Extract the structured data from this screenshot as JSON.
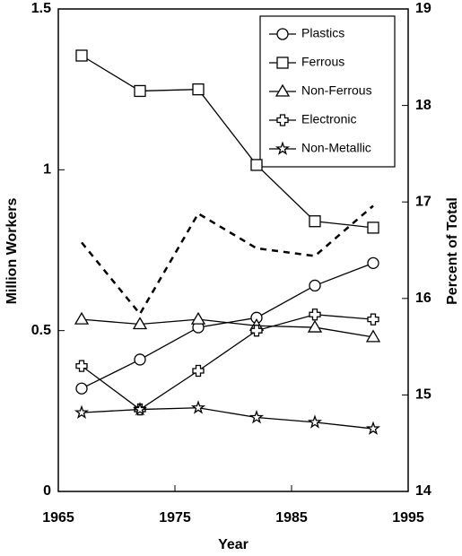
{
  "chart_data": {
    "type": "line",
    "x_label": "Year",
    "y_label": "Million Workers",
    "y2_label": "Percent of Total",
    "xlim": [
      1965,
      1995
    ],
    "xticks": [
      1965,
      1975,
      1985,
      1995
    ],
    "ylim": [
      0,
      1.5
    ],
    "yticks": [
      0,
      0.5,
      1,
      1.5
    ],
    "y2lim": [
      14,
      19
    ],
    "y2ticks": [
      14,
      15,
      16,
      17,
      18,
      19
    ],
    "legend": "upper right",
    "x": [
      1967,
      1972,
      1977,
      1982,
      1987,
      1992
    ],
    "series": [
      {
        "name": "Plastics",
        "color": "#000000",
        "marker": "circle",
        "values": [
          0.32,
          0.41,
          0.51,
          0.54,
          0.64,
          0.71
        ]
      },
      {
        "name": "Ferrous",
        "color": "#000000",
        "marker": "square",
        "values": [
          1.355,
          1.245,
          1.25,
          1.015,
          0.84,
          0.82
        ]
      },
      {
        "name": "Non-Ferrous",
        "color": "#000000",
        "marker": "triangle",
        "values": [
          0.535,
          0.52,
          0.535,
          0.515,
          0.51,
          0.48
        ]
      },
      {
        "name": "Electronic",
        "color": "#000000",
        "marker": "cross",
        "values": [
          0.39,
          0.255,
          0.375,
          0.5,
          0.55,
          0.535
        ]
      },
      {
        "name": "Non-Metallic",
        "color": "#000000",
        "marker": "star",
        "values": [
          0.245,
          0.255,
          0.26,
          0.23,
          0.215,
          0.195
        ]
      },
      {
        "color": "#000000",
        "axis": "y2",
        "dashed": true,
        "values": [
          16.58,
          15.84,
          16.88,
          16.52,
          16.44,
          16.96
        ]
      }
    ]
  }
}
